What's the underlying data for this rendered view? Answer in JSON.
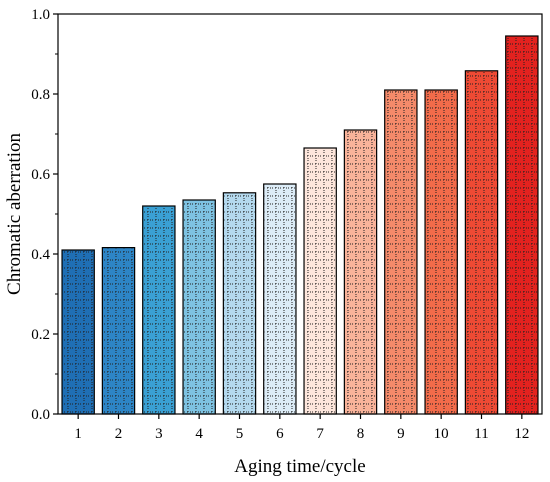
{
  "chart_data": {
    "type": "bar",
    "categories": [
      "1",
      "2",
      "3",
      "4",
      "5",
      "6",
      "7",
      "8",
      "9",
      "10",
      "11",
      "12"
    ],
    "values": [
      0.41,
      0.416,
      0.52,
      0.535,
      0.553,
      0.575,
      0.665,
      0.71,
      0.81,
      0.81,
      0.858,
      0.945
    ],
    "colors": [
      "#1f6fb5",
      "#2d85c6",
      "#3aa0d4",
      "#7ec3e2",
      "#b4d9ee",
      "#dcecf7",
      "#fde6dc",
      "#f9b39a",
      "#f58a6a",
      "#f26b4a",
      "#ee4a34",
      "#e3221f"
    ],
    "xlabel": "Aging time/cycle",
    "ylabel": "Chromatic aberration",
    "ylim": [
      0,
      1.0
    ],
    "yticks": [
      "0.0",
      "0.2",
      "0.4",
      "0.6",
      "0.8",
      "1.0"
    ],
    "ytick_values": [
      0,
      0.2,
      0.4,
      0.6,
      0.8,
      1.0
    ],
    "grid": false,
    "bar_pattern": "dotted-grid"
  }
}
